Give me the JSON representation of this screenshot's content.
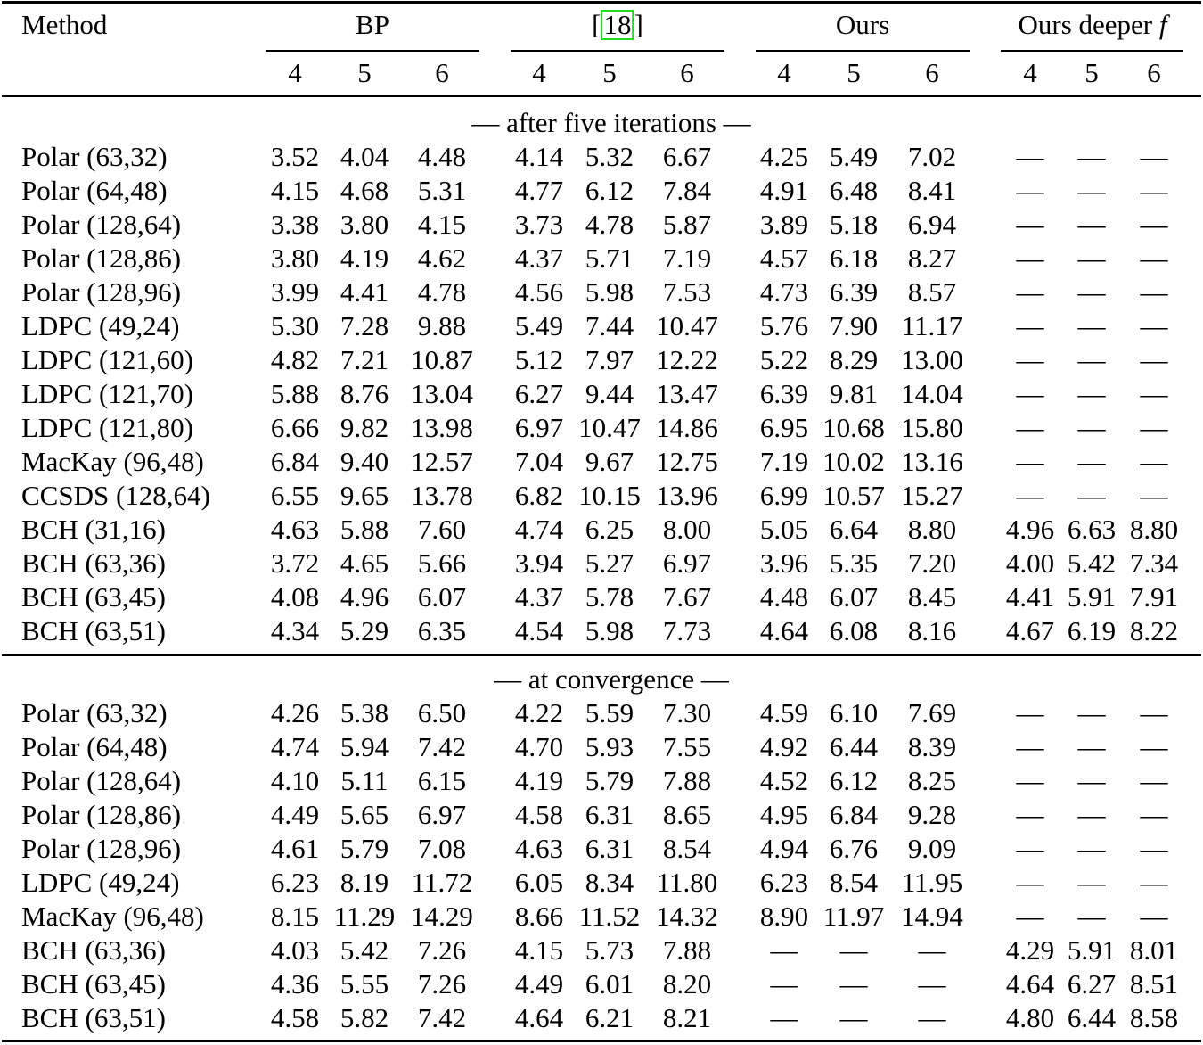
{
  "table": {
    "header": {
      "method_label": "Method",
      "groups": [
        {
          "label": "BP",
          "cite": false
        },
        {
          "label": "18",
          "cite": true,
          "prefix": "[",
          "suffix": "]"
        },
        {
          "label": "Ours",
          "cite": false
        },
        {
          "label": "Ours deeper ",
          "italic_suffix": "f",
          "cite": false
        }
      ],
      "subcolumns": [
        "4",
        "5",
        "6"
      ]
    },
    "sections": [
      {
        "label": "— after five iterations —",
        "rows": [
          {
            "method": "Polar (63,32)",
            "values": [
              "3.52",
              "4.04",
              "4.48",
              "4.14",
              "5.32",
              "6.67",
              "4.25",
              "5.49",
              "7.02",
              "—",
              "—",
              "—"
            ]
          },
          {
            "method": "Polar (64,48)",
            "values": [
              "4.15",
              "4.68",
              "5.31",
              "4.77",
              "6.12",
              "7.84",
              "4.91",
              "6.48",
              "8.41",
              "—",
              "—",
              "—"
            ]
          },
          {
            "method": "Polar (128,64)",
            "values": [
              "3.38",
              "3.80",
              "4.15",
              "3.73",
              "4.78",
              "5.87",
              "3.89",
              "5.18",
              "6.94",
              "—",
              "—",
              "—"
            ]
          },
          {
            "method": "Polar (128,86)",
            "values": [
              "3.80",
              "4.19",
              "4.62",
              "4.37",
              "5.71",
              "7.19",
              "4.57",
              "6.18",
              "8.27",
              "—",
              "—",
              "—"
            ]
          },
          {
            "method": "Polar (128,96)",
            "values": [
              "3.99",
              "4.41",
              "4.78",
              "4.56",
              "5.98",
              "7.53",
              "4.73",
              "6.39",
              "8.57",
              "—",
              "—",
              "—"
            ]
          },
          {
            "method": "LDPC (49,24)",
            "values": [
              "5.30",
              "7.28",
              "9.88",
              "5.49",
              "7.44",
              "10.47",
              "5.76",
              "7.90",
              "11.17",
              "—",
              "—",
              "—"
            ]
          },
          {
            "method": "LDPC (121,60)",
            "values": [
              "4.82",
              "7.21",
              "10.87",
              "5.12",
              "7.97",
              "12.22",
              "5.22",
              "8.29",
              "13.00",
              "—",
              "—",
              "—"
            ]
          },
          {
            "method": "LDPC (121,70)",
            "values": [
              "5.88",
              "8.76",
              "13.04",
              "6.27",
              "9.44",
              "13.47",
              "6.39",
              "9.81",
              "14.04",
              "—",
              "—",
              "—"
            ]
          },
          {
            "method": "LDPC (121,80)",
            "values": [
              "6.66",
              "9.82",
              "13.98",
              "6.97",
              "10.47",
              "14.86",
              "6.95",
              "10.68",
              "15.80",
              "—",
              "—",
              "—"
            ]
          },
          {
            "method": "MacKay (96,48)",
            "values": [
              "6.84",
              "9.40",
              "12.57",
              "7.04",
              "9.67",
              "12.75",
              "7.19",
              "10.02",
              "13.16",
              "—",
              "—",
              "—"
            ]
          },
          {
            "method": "CCSDS (128,64)",
            "values": [
              "6.55",
              "9.65",
              "13.78",
              "6.82",
              "10.15",
              "13.96",
              "6.99",
              "10.57",
              "15.27",
              "—",
              "—",
              "—"
            ]
          },
          {
            "method": "BCH (31,16)",
            "values": [
              "4.63",
              "5.88",
              "7.60",
              "4.74",
              "6.25",
              "8.00",
              "5.05",
              "6.64",
              "8.80",
              "4.96",
              "6.63",
              "8.80"
            ]
          },
          {
            "method": "BCH (63,36)",
            "values": [
              "3.72",
              "4.65",
              "5.66",
              "3.94",
              "5.27",
              "6.97",
              "3.96",
              "5.35",
              "7.20",
              "4.00",
              "5.42",
              "7.34"
            ]
          },
          {
            "method": "BCH (63,45)",
            "values": [
              "4.08",
              "4.96",
              "6.07",
              "4.37",
              "5.78",
              "7.67",
              "4.48",
              "6.07",
              "8.45",
              "4.41",
              "5.91",
              "7.91"
            ]
          },
          {
            "method": "BCH (63,51)",
            "values": [
              "4.34",
              "5.29",
              "6.35",
              "4.54",
              "5.98",
              "7.73",
              "4.64",
              "6.08",
              "8.16",
              "4.67",
              "6.19",
              "8.22"
            ]
          }
        ]
      },
      {
        "label": "— at convergence —",
        "rows": [
          {
            "method": "Polar (63,32)",
            "values": [
              "4.26",
              "5.38",
              "6.50",
              "4.22",
              "5.59",
              "7.30",
              "4.59",
              "6.10",
              "7.69",
              "—",
              "—",
              "—"
            ]
          },
          {
            "method": "Polar (64,48)",
            "values": [
              "4.74",
              "5.94",
              "7.42",
              "4.70",
              "5.93",
              "7.55",
              "4.92",
              "6.44",
              "8.39",
              "—",
              "—",
              "—"
            ]
          },
          {
            "method": "Polar (128,64)",
            "values": [
              "4.10",
              "5.11",
              "6.15",
              "4.19",
              "5.79",
              "7.88",
              "4.52",
              "6.12",
              "8.25",
              "—",
              "—",
              "—"
            ]
          },
          {
            "method": "Polar (128,86)",
            "values": [
              "4.49",
              "5.65",
              "6.97",
              "4.58",
              "6.31",
              "8.65",
              "4.95",
              "6.84",
              "9.28",
              "—",
              "—",
              "—"
            ]
          },
          {
            "method": "Polar (128,96)",
            "values": [
              "4.61",
              "5.79",
              "7.08",
              "4.63",
              "6.31",
              "8.54",
              "4.94",
              "6.76",
              "9.09",
              "—",
              "—",
              "—"
            ]
          },
          {
            "method": "LDPC (49,24)",
            "values": [
              "6.23",
              "8.19",
              "11.72",
              "6.05",
              "8.34",
              "11.80",
              "6.23",
              "8.54",
              "11.95",
              "—",
              "—",
              "—"
            ]
          },
          {
            "method": "MacKay (96,48)",
            "values": [
              "8.15",
              "11.29",
              "14.29",
              "8.66",
              "11.52",
              "14.32",
              "8.90",
              "11.97",
              "14.94",
              "—",
              "—",
              "—"
            ]
          },
          {
            "method": "BCH (63,36)",
            "values": [
              "4.03",
              "5.42",
              "7.26",
              "4.15",
              "5.73",
              "7.88",
              "—",
              "—",
              "—",
              "4.29",
              "5.91",
              "8.01"
            ]
          },
          {
            "method": "BCH (63,45)",
            "values": [
              "4.36",
              "5.55",
              "7.26",
              "4.49",
              "6.01",
              "8.20",
              "—",
              "—",
              "—",
              "4.64",
              "6.27",
              "8.51"
            ]
          },
          {
            "method": "BCH (63,51)",
            "values": [
              "4.58",
              "5.82",
              "7.42",
              "4.64",
              "6.21",
              "8.21",
              "—",
              "—",
              "—",
              "4.80",
              "6.44",
              "8.58"
            ]
          }
        ]
      }
    ]
  },
  "colors": {
    "text": "#000000",
    "background": "#ffffff",
    "citation_box": "#22dd22"
  }
}
